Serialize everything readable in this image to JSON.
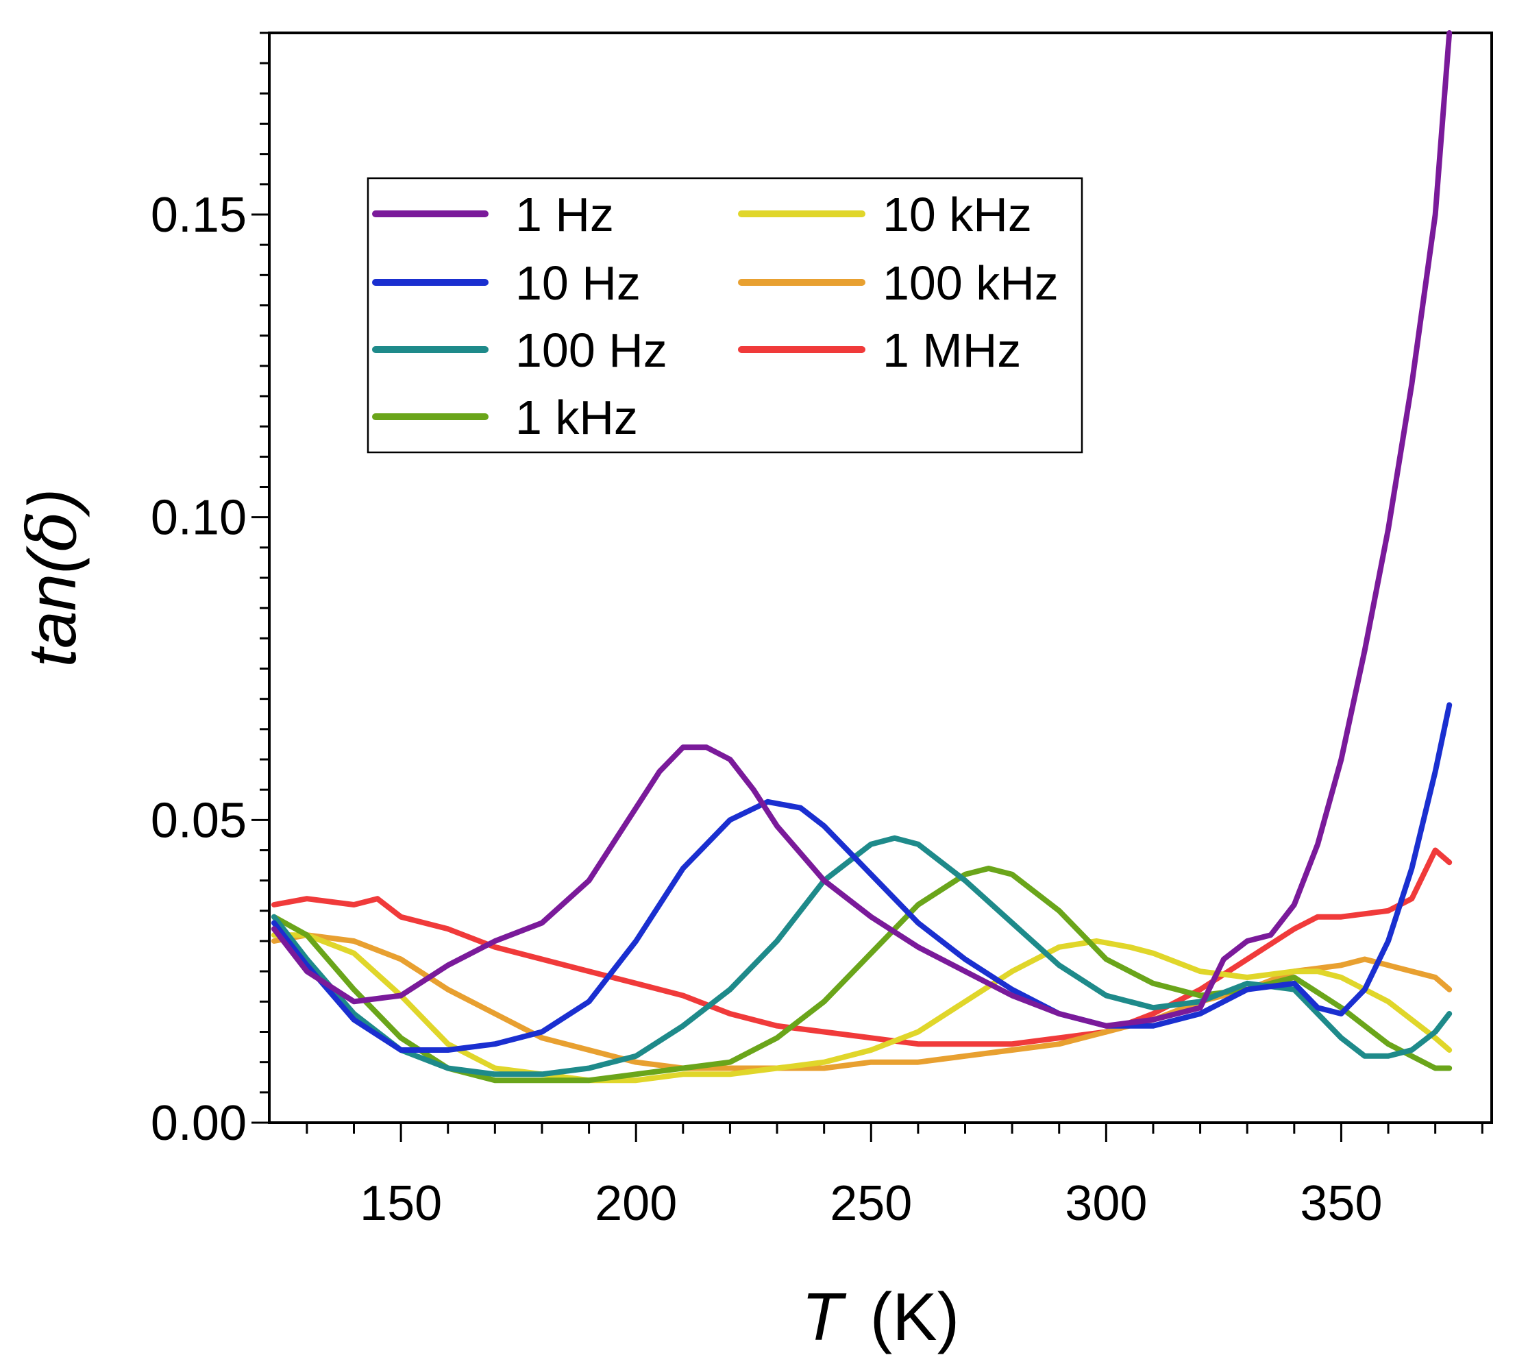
{
  "chart_data": {
    "type": "line",
    "title": "",
    "xlabel": {
      "var": "T",
      "unit": "(K)"
    },
    "ylabel": {
      "func": "tan(",
      "sym": "δ",
      "close": ")"
    },
    "xlim": [
      122,
      382
    ],
    "ylim": [
      0.0,
      0.18
    ],
    "xticks": [
      150,
      200,
      250,
      300,
      350
    ],
    "xtick_labels": [
      "150",
      "200",
      "250",
      "300",
      "350"
    ],
    "yticks": [
      0.0,
      0.05,
      0.1,
      0.15
    ],
    "ytick_labels": [
      "0.00",
      "0.05",
      "0.10",
      "0.15"
    ],
    "grid": false,
    "legend_position": "top-left",
    "series": [
      {
        "name": "1 Hz",
        "color": "#7a1a9a",
        "x": [
          123,
          130,
          140,
          150,
          160,
          170,
          180,
          190,
          200,
          205,
          210,
          215,
          220,
          225,
          230,
          240,
          250,
          260,
          270,
          280,
          290,
          300,
          310,
          320,
          325,
          330,
          335,
          340,
          345,
          350,
          355,
          360,
          365,
          370,
          373
        ],
        "y": [
          0.032,
          0.025,
          0.02,
          0.021,
          0.026,
          0.03,
          0.033,
          0.04,
          0.052,
          0.058,
          0.062,
          0.062,
          0.06,
          0.055,
          0.049,
          0.04,
          0.034,
          0.029,
          0.025,
          0.021,
          0.018,
          0.016,
          0.017,
          0.019,
          0.027,
          0.03,
          0.031,
          0.036,
          0.046,
          0.06,
          0.078,
          0.098,
          0.122,
          0.15,
          0.18
        ]
      },
      {
        "name": "10 Hz",
        "color": "#1a2fd0",
        "x": [
          123,
          130,
          140,
          150,
          160,
          170,
          180,
          190,
          200,
          210,
          220,
          228,
          235,
          240,
          250,
          260,
          270,
          280,
          290,
          300,
          310,
          320,
          330,
          340,
          345,
          350,
          355,
          360,
          365,
          370,
          373
        ],
        "y": [
          0.033,
          0.026,
          0.017,
          0.012,
          0.012,
          0.013,
          0.015,
          0.02,
          0.03,
          0.042,
          0.05,
          0.053,
          0.052,
          0.049,
          0.041,
          0.033,
          0.027,
          0.022,
          0.018,
          0.016,
          0.016,
          0.018,
          0.022,
          0.023,
          0.019,
          0.018,
          0.022,
          0.03,
          0.042,
          0.058,
          0.069
        ]
      },
      {
        "name": "100 Hz",
        "color": "#1e8a8a",
        "x": [
          123,
          130,
          140,
          150,
          160,
          170,
          180,
          190,
          200,
          210,
          220,
          230,
          240,
          250,
          255,
          260,
          270,
          280,
          290,
          300,
          310,
          320,
          330,
          340,
          350,
          355,
          360,
          365,
          370,
          373
        ],
        "y": [
          0.034,
          0.027,
          0.018,
          0.012,
          0.009,
          0.008,
          0.008,
          0.009,
          0.011,
          0.016,
          0.022,
          0.03,
          0.04,
          0.046,
          0.047,
          0.046,
          0.04,
          0.033,
          0.026,
          0.021,
          0.019,
          0.02,
          0.023,
          0.022,
          0.014,
          0.011,
          0.011,
          0.012,
          0.015,
          0.018
        ]
      },
      {
        "name": "1 kHz",
        "color": "#6aa51a",
        "x": [
          123,
          130,
          140,
          150,
          160,
          170,
          180,
          190,
          200,
          210,
          220,
          230,
          240,
          250,
          260,
          270,
          275,
          280,
          290,
          300,
          310,
          320,
          330,
          340,
          350,
          360,
          370,
          373
        ],
        "y": [
          0.034,
          0.031,
          0.022,
          0.014,
          0.009,
          0.007,
          0.007,
          0.007,
          0.008,
          0.009,
          0.01,
          0.014,
          0.02,
          0.028,
          0.036,
          0.041,
          0.042,
          0.041,
          0.035,
          0.027,
          0.023,
          0.021,
          0.022,
          0.024,
          0.019,
          0.013,
          0.009,
          0.009
        ]
      },
      {
        "name": "10 kHz",
        "color": "#e0d62a",
        "x": [
          123,
          130,
          140,
          150,
          160,
          170,
          180,
          190,
          200,
          210,
          220,
          230,
          240,
          250,
          260,
          270,
          280,
          290,
          298,
          305,
          310,
          320,
          330,
          340,
          345,
          350,
          360,
          370,
          373
        ],
        "y": [
          0.031,
          0.031,
          0.028,
          0.021,
          0.013,
          0.009,
          0.008,
          0.007,
          0.007,
          0.008,
          0.008,
          0.009,
          0.01,
          0.012,
          0.015,
          0.02,
          0.025,
          0.029,
          0.03,
          0.029,
          0.028,
          0.025,
          0.024,
          0.025,
          0.025,
          0.024,
          0.02,
          0.014,
          0.012
        ]
      },
      {
        "name": "100 kHz",
        "color": "#e8a030",
        "x": [
          123,
          130,
          140,
          150,
          160,
          170,
          180,
          190,
          200,
          210,
          220,
          230,
          240,
          250,
          260,
          270,
          280,
          290,
          300,
          310,
          320,
          330,
          340,
          350,
          355,
          360,
          370,
          373
        ],
        "y": [
          0.03,
          0.031,
          0.03,
          0.027,
          0.022,
          0.018,
          0.014,
          0.012,
          0.01,
          0.009,
          0.009,
          0.009,
          0.009,
          0.01,
          0.01,
          0.011,
          0.012,
          0.013,
          0.015,
          0.017,
          0.02,
          0.022,
          0.025,
          0.026,
          0.027,
          0.026,
          0.024,
          0.022
        ]
      },
      {
        "name": "1 MHz",
        "color": "#f03a3a",
        "x": [
          123,
          130,
          140,
          145,
          150,
          160,
          170,
          180,
          190,
          200,
          210,
          220,
          230,
          240,
          250,
          260,
          270,
          280,
          290,
          300,
          310,
          320,
          330,
          340,
          345,
          350,
          360,
          365,
          370,
          373
        ],
        "y": [
          0.036,
          0.037,
          0.036,
          0.037,
          0.034,
          0.032,
          0.029,
          0.027,
          0.025,
          0.023,
          0.021,
          0.018,
          0.016,
          0.015,
          0.014,
          0.013,
          0.013,
          0.013,
          0.014,
          0.015,
          0.018,
          0.022,
          0.027,
          0.032,
          0.034,
          0.034,
          0.035,
          0.037,
          0.045,
          0.043
        ]
      }
    ]
  }
}
